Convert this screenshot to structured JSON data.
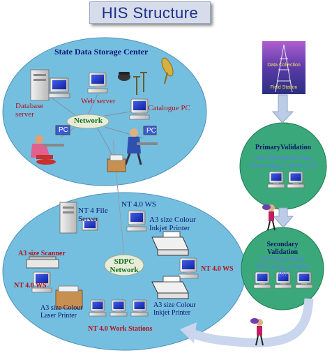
{
  "title": "HIS Structure",
  "state_center": {
    "title": "State Data Storage Center",
    "network_label": "Network",
    "database_server_label": "Database\nserver",
    "web_server_label": "Web server",
    "catalogue_pc_label": "Catalogue PC",
    "pc_tag_1": "PC",
    "pc_tag_2": "PC"
  },
  "sdpc": {
    "network_label": "SDPC\nNetwork",
    "file_server_label": "NT 4 File\nServer",
    "nt40ws_top_label": "NT 4.0 WS",
    "inkjet_top_label": "A3 size Colour\nInkjet Printer",
    "scanner_label": "A3 size Scanner",
    "nt40ws_left_label": "NT 4.0 WS",
    "nt40ws_right_label": "NT 4.0 WS",
    "laser_label": "A3 size Colour\nLaser Printer",
    "inkjet_bottom_label": "A3 size Colour\nInkjet Printer",
    "workstations_label": "NT 4.0 Work Stations"
  },
  "data_collection": {
    "line1": "Data Collection",
    "line2": "Field Station"
  },
  "primary": {
    "title": "PrimaryValidation",
    "subtitle": "Sub-Divisional Data\nProcessing Centers (23)"
  },
  "secondary": {
    "title": "Secondary\nValidation",
    "subtitle": "Divisional Data\nProcessing Centers\n(6)"
  },
  "colors": {
    "ellipse_fill": "#74bfe0",
    "green_fill": "#3aa87a",
    "arrow_fill": "#bccbe6",
    "title_text": "#1c2f8c",
    "label_red": "#b5121b",
    "label_navy": "#0d1470",
    "label_green": "#116e1e",
    "subtitle_blue": "#5a7ff0"
  },
  "icons": [
    "monitor-icon",
    "server-tower-icon",
    "printer-icon",
    "scanner-icon",
    "laser-printer-icon",
    "antenna-tower-icon",
    "person-icon",
    "telephone-icon",
    "satellite-dish-icon"
  ]
}
